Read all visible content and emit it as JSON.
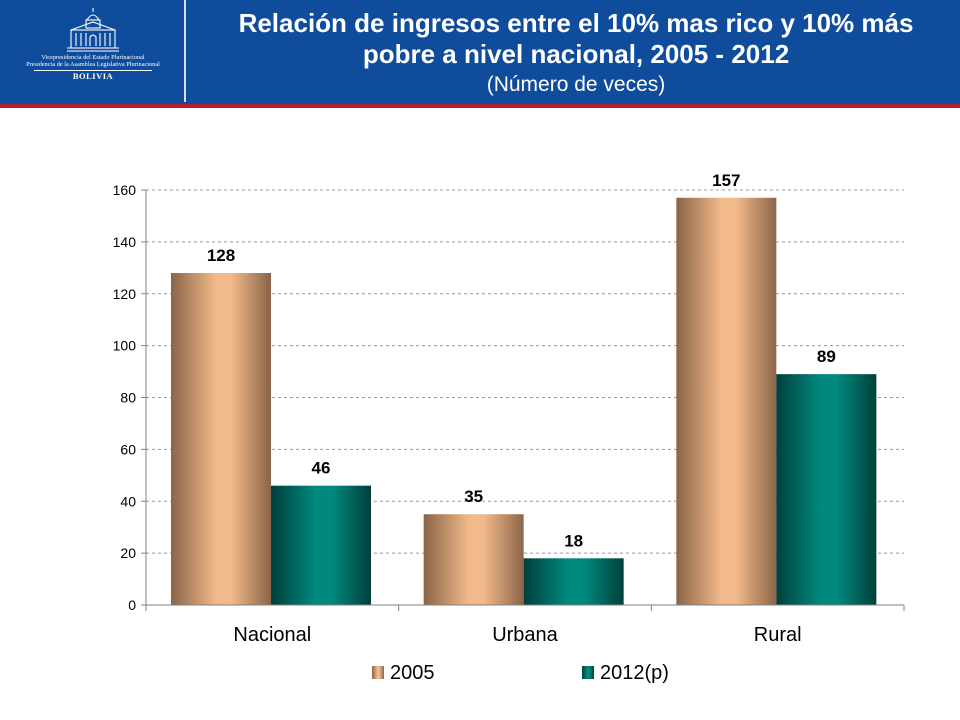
{
  "header": {
    "logo_line1": "Vicepresidencia del Estado Plurinacional",
    "logo_line2": "Presidencia de la Asamblea Legislativa Plurinacional",
    "logo_line3": "BOLIVIA",
    "background_color": "#0f4d9c",
    "accent_color": "#b71c2a"
  },
  "chart_data": {
    "type": "bar",
    "title": "Relación de ingresos entre el 10% mas rico y 10% más pobre a nivel nacional, 2005 - 2012",
    "subtitle": "(Número de veces)",
    "categories": [
      "Nacional",
      "Urbana",
      "Rural"
    ],
    "series": [
      {
        "name": "2005",
        "values": [
          128,
          35,
          157
        ],
        "color": "#f2b98a",
        "dark_color": "#8a6548",
        "label": "2005"
      },
      {
        "name": "2012(p)",
        "values": [
          46,
          18,
          89
        ],
        "color": "#008a7f",
        "dark_color": "#00403b",
        "label": "2012(p)"
      }
    ],
    "data_labels": [
      [
        "128",
        "35",
        "157"
      ],
      [
        "46",
        "18",
        "89"
      ]
    ],
    "ylim": [
      0,
      160
    ],
    "yticks": [
      0,
      20,
      40,
      60,
      80,
      100,
      120,
      140,
      160
    ],
    "ytick_labels": [
      "0",
      "20",
      "40",
      "60",
      "80",
      "100",
      "120",
      "140",
      "160"
    ],
    "grid": true,
    "legend_position": "bottom"
  }
}
